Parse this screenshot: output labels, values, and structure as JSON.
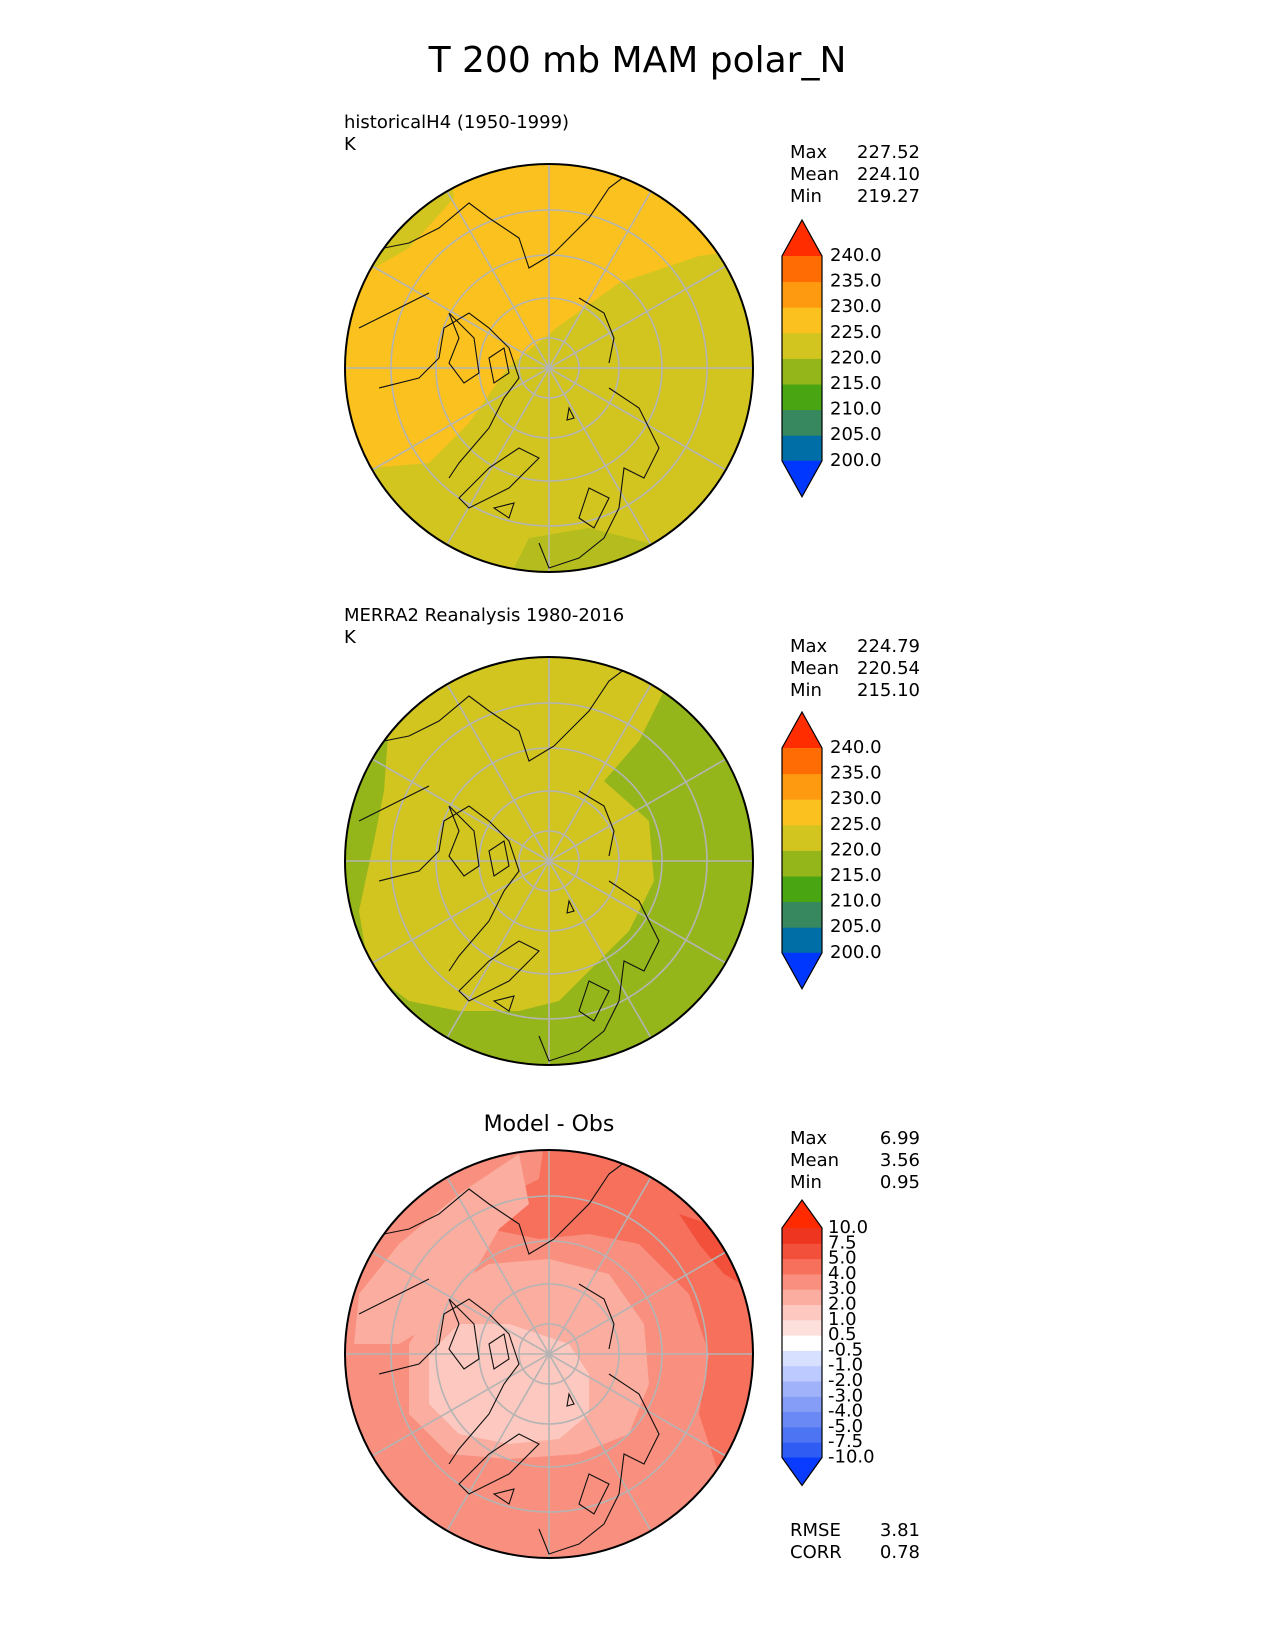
{
  "title": "T 200 mb MAM polar_N",
  "panels": [
    {
      "id": "model",
      "title_line1": "historicalH4 (1950-1999)",
      "title_line2": "K",
      "stats": [
        {
          "label": "Max",
          "value": "227.52"
        },
        {
          "label": "Mean",
          "value": "224.10"
        },
        {
          "label": "Min",
          "value": "219.27"
        }
      ],
      "colorbar": {
        "levels": [
          "200.0",
          "205.0",
          "210.0",
          "215.0",
          "220.0",
          "225.0",
          "230.0",
          "235.0",
          "240.0"
        ],
        "colors": [
          "#0037ff",
          "#006ea6",
          "#37875f",
          "#49a512",
          "#95b61a",
          "#d2c520",
          "#fbc21f",
          "#fd9a0f",
          "#ff6c04",
          "#ff2d00"
        ]
      }
    },
    {
      "id": "obs",
      "title_line1": "MERRA2 Reanalysis 1980-2016",
      "title_line2": "K",
      "stats": [
        {
          "label": "Max",
          "value": "224.79"
        },
        {
          "label": "Mean",
          "value": "220.54"
        },
        {
          "label": "Min",
          "value": "215.10"
        }
      ],
      "colorbar": {
        "levels": [
          "200.0",
          "205.0",
          "210.0",
          "215.0",
          "220.0",
          "225.0",
          "230.0",
          "235.0",
          "240.0"
        ],
        "colors": [
          "#0037ff",
          "#006ea6",
          "#37875f",
          "#49a512",
          "#95b61a",
          "#d2c520",
          "#fbc21f",
          "#fd9a0f",
          "#ff6c04",
          "#ff2d00"
        ]
      }
    },
    {
      "id": "diff",
      "title": "Model - Obs",
      "stats": [
        {
          "label": "Max",
          "value": "6.99"
        },
        {
          "label": "Mean",
          "value": "3.56"
        },
        {
          "label": "Min",
          "value": "0.95"
        }
      ],
      "extra_stats": [
        {
          "label": "RMSE",
          "value": "3.81"
        },
        {
          "label": "CORR",
          "value": "0.78"
        }
      ],
      "colorbar": {
        "levels": [
          "-10.0",
          "-7.5",
          "-5.0",
          "-4.0",
          "-3.0",
          "-2.0",
          "-1.0",
          "-0.5",
          "0.5",
          "1.0",
          "2.0",
          "3.0",
          "4.0",
          "5.0",
          "7.5",
          "10.0"
        ],
        "colors": [
          "#0a3cff",
          "#2f5df4",
          "#4d74f2",
          "#6a89f4",
          "#859df7",
          "#a0b3fa",
          "#bccaff",
          "#d8e0ff",
          "#ffffff",
          "#fde0dc",
          "#fcc8bf",
          "#fbada0",
          "#f98f7e",
          "#f6705c",
          "#f2503b",
          "#ee3520",
          "#ff2a00"
        ]
      }
    }
  ]
}
